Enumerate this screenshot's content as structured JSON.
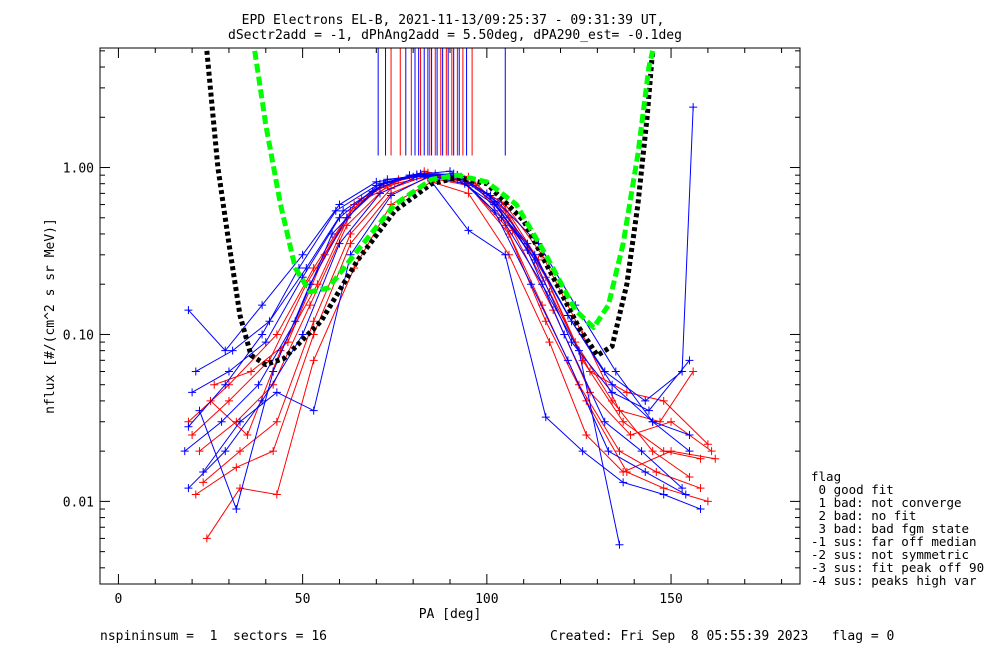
{
  "header": {
    "title_line1": "EPD Electrons EL-B, 2021-11-13/09:25:37 - 09:31:39 UT,",
    "title_line2": "dSectr2add = -1, dPhAng2add = 5.50deg, dPA290_est=  -0.1deg"
  },
  "footer": {
    "left": "nspininsum =  1  sectors = 16",
    "right": "Created: Fri Sep  8 05:55:39 2023   flag = 0"
  },
  "legend": {
    "title": "flag",
    "items": [
      " 0 good fit",
      " 1 bad: not converge",
      " 2 bad: no fit",
      " 3 bad: bad fgm state",
      "-1 sus: far off median",
      "-2 sus: not symmetric",
      "-3 sus: fit peak off 90",
      "-4 sus: peaks high var"
    ]
  },
  "chart_data": {
    "type": "line",
    "title": "EPD Electrons EL-B, 2021-11-13/09:25:37 - 09:31:39 UT,",
    "subtitle": "dSectr2add = -1, dPhAng2add = 5.50deg, dPA290_est=  -0.1deg",
    "xlabel": "PA [deg]",
    "ylabel": "nflux [#/(cm^2 s sr MeV)]",
    "xlim": [
      -5,
      185
    ],
    "ylim": [
      0.0032,
      5.2
    ],
    "yscale": "log",
    "x_ticks": [
      0,
      50,
      100,
      150
    ],
    "y_ticks": [
      0.01,
      0.1,
      1.0
    ],
    "y_tick_labels": [
      "0.01",
      "0.10",
      "1.00"
    ],
    "colors": {
      "red_series": "#ff0000",
      "blue_series": "#0000ff",
      "black_fit": "#000000",
      "green_fit": "#00ff00"
    },
    "fit_curves": [
      {
        "color": "black",
        "style": "dotted",
        "points": [
          [
            24,
            5.0
          ],
          [
            27,
            1.0
          ],
          [
            30,
            0.35
          ],
          [
            33,
            0.13
          ],
          [
            36,
            0.075
          ],
          [
            40,
            0.066
          ],
          [
            45,
            0.072
          ],
          [
            55,
            0.12
          ],
          [
            65,
            0.28
          ],
          [
            75,
            0.55
          ],
          [
            85,
            0.8
          ],
          [
            92,
            0.87
          ],
          [
            100,
            0.8
          ],
          [
            110,
            0.48
          ],
          [
            118,
            0.22
          ],
          [
            125,
            0.11
          ],
          [
            130,
            0.075
          ],
          [
            134,
            0.085
          ],
          [
            138,
            0.2
          ],
          [
            141,
            0.6
          ],
          [
            143.5,
            2.0
          ],
          [
            145,
            5.0
          ]
        ]
      },
      {
        "color": "green",
        "style": "dashed",
        "points": [
          [
            37,
            5.0
          ],
          [
            40,
            1.8
          ],
          [
            44,
            0.6
          ],
          [
            48,
            0.25
          ],
          [
            52,
            0.18
          ],
          [
            57,
            0.19
          ],
          [
            65,
            0.32
          ],
          [
            75,
            0.6
          ],
          [
            85,
            0.85
          ],
          [
            92,
            0.9
          ],
          [
            100,
            0.82
          ],
          [
            108,
            0.6
          ],
          [
            116,
            0.3
          ],
          [
            124,
            0.14
          ],
          [
            129,
            0.11
          ],
          [
            133,
            0.15
          ],
          [
            137,
            0.35
          ],
          [
            141,
            1.2
          ],
          [
            144,
            4.0
          ],
          [
            145,
            5.0
          ]
        ]
      }
    ],
    "series": [
      {
        "color": "red",
        "values": [
          [
            19,
            0.03
          ],
          [
            30,
            0.05
          ],
          [
            43,
            0.1
          ],
          [
            53,
            0.25
          ],
          [
            63,
            0.55
          ],
          [
            73,
            0.82
          ],
          [
            84,
            0.93
          ],
          [
            95,
            0.88
          ],
          [
            105,
            0.55
          ],
          [
            116,
            0.22
          ],
          [
            126,
            0.07
          ],
          [
            137,
            0.03
          ],
          [
            148,
            0.02
          ],
          [
            158,
            0.018
          ]
        ]
      },
      {
        "color": "red",
        "values": [
          [
            21,
            0.011
          ],
          [
            32,
            0.016
          ],
          [
            42,
            0.02
          ],
          [
            53,
            0.1
          ],
          [
            63,
            0.35
          ],
          [
            74,
            0.7
          ],
          [
            84,
            0.87
          ],
          [
            95,
            0.78
          ],
          [
            106,
            0.4
          ],
          [
            116,
            0.12
          ],
          [
            127,
            0.04
          ],
          [
            138,
            0.015
          ],
          [
            148,
            0.012
          ],
          [
            160,
            0.01
          ]
        ]
      },
      {
        "color": "red",
        "values": [
          [
            24,
            0.006
          ],
          [
            33,
            0.012
          ],
          [
            43,
            0.011
          ],
          [
            53,
            0.07
          ],
          [
            64,
            0.25
          ],
          [
            74,
            0.6
          ],
          [
            85,
            0.82
          ],
          [
            95,
            0.7
          ],
          [
            106,
            0.3
          ],
          [
            117,
            0.09
          ],
          [
            127,
            0.025
          ],
          [
            137,
            0.015
          ],
          [
            150,
            0.02
          ],
          [
            162,
            0.018
          ]
        ]
      },
      {
        "color": "red",
        "values": [
          [
            22,
            0.02
          ],
          [
            32,
            0.03
          ],
          [
            42,
            0.05
          ],
          [
            52,
            0.15
          ],
          [
            62,
            0.45
          ],
          [
            73,
            0.78
          ],
          [
            83,
            0.95
          ],
          [
            94,
            0.85
          ],
          [
            105,
            0.6
          ],
          [
            115,
            0.3
          ],
          [
            126,
            0.1
          ],
          [
            136,
            0.035
          ],
          [
            147,
            0.03
          ],
          [
            156,
            0.06
          ]
        ]
      },
      {
        "color": "red",
        "values": [
          [
            25,
            0.04
          ],
          [
            35,
            0.025
          ],
          [
            44,
            0.08
          ],
          [
            54,
            0.2
          ],
          [
            64,
            0.6
          ],
          [
            75,
            0.8
          ],
          [
            86,
            0.9
          ],
          [
            96,
            0.8
          ],
          [
            106,
            0.5
          ],
          [
            117,
            0.18
          ],
          [
            128,
            0.06
          ],
          [
            138,
            0.045
          ],
          [
            148,
            0.04
          ],
          [
            160,
            0.022
          ]
        ]
      },
      {
        "color": "red",
        "values": [
          [
            23,
            0.013
          ],
          [
            33,
            0.02
          ],
          [
            43,
            0.03
          ],
          [
            53,
            0.12
          ],
          [
            63,
            0.4
          ],
          [
            74,
            0.75
          ],
          [
            84,
            0.9
          ],
          [
            94,
            0.82
          ],
          [
            105,
            0.45
          ],
          [
            115,
            0.15
          ],
          [
            125,
            0.05
          ],
          [
            136,
            0.02
          ],
          [
            146,
            0.015
          ],
          [
            158,
            0.012
          ]
        ]
      },
      {
        "color": "red",
        "values": [
          [
            20,
            0.025
          ],
          [
            30,
            0.04
          ],
          [
            41,
            0.07
          ],
          [
            51,
            0.2
          ],
          [
            62,
            0.5
          ],
          [
            72,
            0.8
          ],
          [
            83,
            0.9
          ],
          [
            93,
            0.86
          ],
          [
            104,
            0.62
          ],
          [
            114,
            0.28
          ],
          [
            124,
            0.09
          ],
          [
            134,
            0.04
          ],
          [
            145,
            0.02
          ],
          [
            155,
            0.014
          ]
        ]
      },
      {
        "color": "red",
        "values": [
          [
            26,
            0.05
          ],
          [
            36,
            0.06
          ],
          [
            46,
            0.09
          ],
          [
            56,
            0.3
          ],
          [
            66,
            0.65
          ],
          [
            76,
            0.85
          ],
          [
            86,
            0.92
          ],
          [
            97,
            0.78
          ],
          [
            107,
            0.42
          ],
          [
            118,
            0.14
          ],
          [
            128,
            0.045
          ],
          [
            139,
            0.025
          ],
          [
            150,
            0.03
          ],
          [
            161,
            0.02
          ]
        ]
      },
      {
        "color": "blue",
        "values": [
          [
            19,
            0.14
          ],
          [
            29,
            0.08
          ],
          [
            39,
            0.15
          ],
          [
            50,
            0.3
          ],
          [
            60,
            0.6
          ],
          [
            70,
            0.82
          ],
          [
            81,
            0.9
          ],
          [
            92,
            0.85
          ],
          [
            102,
            0.6
          ],
          [
            113,
            0.3
          ],
          [
            123,
            0.12
          ],
          [
            134,
            0.05
          ],
          [
            145,
            0.03
          ],
          [
            155,
            0.02
          ]
        ]
      },
      {
        "color": "blue",
        "values": [
          [
            19,
            0.012
          ],
          [
            29,
            0.02
          ],
          [
            39,
            0.04
          ],
          [
            50,
            0.1
          ],
          [
            60,
            0.35
          ],
          [
            71,
            0.7
          ],
          [
            81,
            0.88
          ],
          [
            92,
            0.9
          ],
          [
            102,
            0.55
          ],
          [
            112,
            0.2
          ],
          [
            122,
            0.07
          ],
          [
            133,
            0.02
          ],
          [
            143,
            0.015
          ],
          [
            154,
            0.011
          ]
        ]
      },
      {
        "color": "blue",
        "values": [
          [
            21,
            0.06
          ],
          [
            31,
            0.08
          ],
          [
            41,
            0.12
          ],
          [
            51,
            0.25
          ],
          [
            61,
            0.55
          ],
          [
            72,
            0.8
          ],
          [
            82,
            0.92
          ],
          [
            93,
            0.88
          ],
          [
            103,
            0.62
          ],
          [
            114,
            0.35
          ],
          [
            124,
            0.15
          ],
          [
            135,
            0.06
          ],
          [
            145,
            0.03
          ],
          [
            155,
            0.025
          ]
        ]
      },
      {
        "color": "blue",
        "values": [
          [
            18,
            0.02
          ],
          [
            28,
            0.03
          ],
          [
            38,
            0.05
          ],
          [
            48,
            0.12
          ],
          [
            58,
            0.4
          ],
          [
            69,
            0.72
          ],
          [
            79,
            0.9
          ],
          [
            90,
            0.95
          ],
          [
            100,
            0.7
          ],
          [
            111,
            0.32
          ],
          [
            121,
            0.1
          ],
          [
            132,
            0.03
          ],
          [
            142,
            0.02
          ],
          [
            153,
            0.012
          ]
        ]
      },
      {
        "color": "blue",
        "values": [
          [
            22,
            0.035
          ],
          [
            32,
            0.009
          ],
          [
            42,
            0.06
          ],
          [
            52,
            0.2
          ],
          [
            62,
            0.5
          ],
          [
            73,
            0.85
          ],
          [
            83,
            0.9
          ],
          [
            94,
            0.8
          ],
          [
            104,
            0.5
          ],
          [
            115,
            0.2
          ],
          [
            125,
            0.08
          ],
          [
            136,
            0.0055
          ]
        ]
      },
      {
        "color": "blue",
        "values": [
          [
            20,
            0.045
          ],
          [
            30,
            0.06
          ],
          [
            40,
            0.09
          ],
          [
            50,
            0.22
          ],
          [
            60,
            0.5
          ],
          [
            71,
            0.8
          ],
          [
            81,
            0.91
          ],
          [
            92,
            0.9
          ],
          [
            102,
            0.62
          ],
          [
            113,
            0.28
          ],
          [
            123,
            0.09
          ],
          [
            134,
            0.045
          ],
          [
            144,
            0.035
          ],
          [
            155,
            0.07
          ]
        ]
      },
      {
        "color": "blue",
        "values": [
          [
            19,
            0.028
          ],
          [
            29,
            0.05
          ],
          [
            39,
            0.1
          ],
          [
            49,
            0.25
          ],
          [
            59,
            0.55
          ],
          [
            70,
            0.78
          ],
          [
            80,
            0.88
          ],
          [
            91,
            0.92
          ],
          [
            101,
            0.68
          ],
          [
            111,
            0.35
          ],
          [
            122,
            0.13
          ],
          [
            132,
            0.06
          ],
          [
            143,
            0.04
          ],
          [
            153,
            0.06
          ],
          [
            156,
            2.3
          ]
        ]
      },
      {
        "color": "blue",
        "values": [
          [
            23,
            0.015
          ],
          [
            33,
            0.03
          ],
          [
            43,
            0.045
          ],
          [
            53,
            0.035
          ],
          [
            63,
            0.3
          ],
          [
            74,
            0.68
          ],
          [
            84,
            0.88
          ],
          [
            95,
            0.42
          ],
          [
            105,
            0.3
          ],
          [
            116,
            0.032
          ],
          [
            126,
            0.02
          ],
          [
            137,
            0.013
          ],
          [
            148,
            0.011
          ],
          [
            158,
            0.009
          ]
        ]
      }
    ],
    "vertical_markers": {
      "y_range": [
        1.18,
        5.2
      ],
      "red_x": [
        74,
        76.5,
        79.5,
        82,
        84.5,
        86,
        87.5,
        89,
        90.5,
        92,
        93.5,
        96
      ],
      "blue_x": [
        70.5,
        72.5,
        78,
        80.5,
        81.5,
        83,
        84,
        85,
        86.5,
        88,
        89.5,
        91,
        92.5,
        94.5,
        105
      ]
    }
  }
}
